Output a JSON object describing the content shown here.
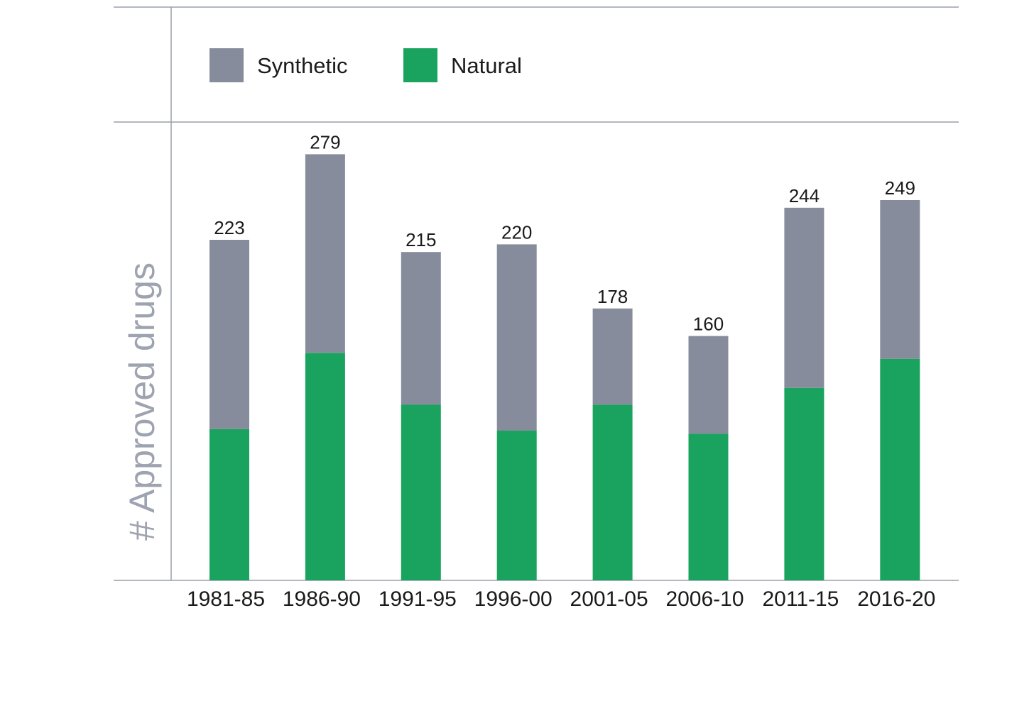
{
  "chart_data": {
    "type": "bar",
    "stacked": true,
    "categories": [
      "1981-85",
      "1986-90",
      "1991-95",
      "1996-00",
      "2001-05",
      "2006-10",
      "2011-15",
      "2016-20"
    ],
    "series": [
      {
        "name": "Natural",
        "color": "#19a35e",
        "values": [
          99,
          149,
          115,
          98,
          115,
          96,
          126,
          145
        ]
      },
      {
        "name": "Synthetic",
        "color": "#878c9c",
        "values": [
          124,
          130,
          100,
          122,
          63,
          64,
          118,
          104
        ]
      }
    ],
    "totals": [
      "223",
      "279",
      "215",
      "220",
      "178",
      "160",
      "244",
      "249"
    ],
    "ylabel": "# Approved drugs",
    "xlabel": "",
    "ylim": [
      0,
      380
    ],
    "legend": {
      "placement": "top-left",
      "order": [
        "Synthetic",
        "Natural"
      ]
    },
    "grid": false
  }
}
